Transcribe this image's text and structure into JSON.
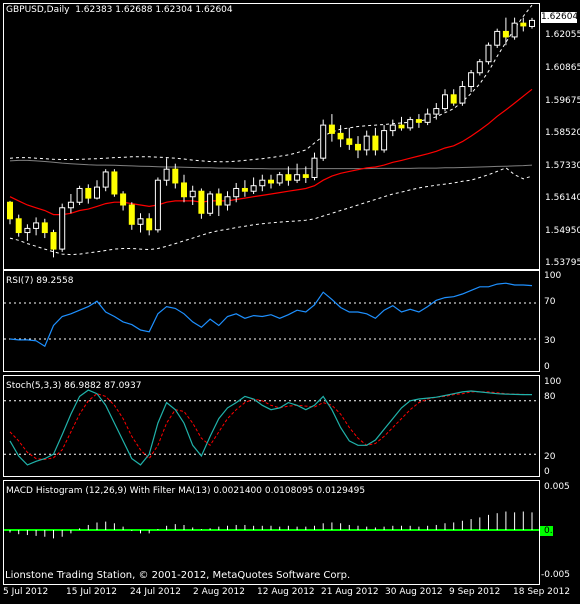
{
  "window": {
    "title": "GBPUSD,Daily",
    "ohlc": "1.62383 1.62688 1.62304 1.62604",
    "last_price": "1.62604",
    "credit": "Lionstone Trading Station, © 2001-2012, MetaQuotes Software Corp."
  },
  "colors": {
    "background": "#000000",
    "frame": "#ffffff",
    "candle_bull": "#000000",
    "candle_bear": "#ffff00",
    "ma": "#ff0000",
    "envelope_mid": "#808080",
    "rsi": "#1e90ff",
    "stoch_main": "#20b2aa",
    "stoch_signal": "#ff0000",
    "macd_hist": "#ffffff",
    "macd_zero": "#00ff00"
  },
  "x_labels": [
    "5 Jul 2012",
    "15 Jul 2012",
    "24 Jul 2012",
    "2 Aug 2012",
    "12 Aug 2012",
    "21 Aug 2012",
    "30 Aug 2012",
    "9 Sep 2012",
    "18 Sep 2012"
  ],
  "price_axis": [
    "1.62055",
    "1.60865",
    "1.59675",
    "1.58520",
    "1.57330",
    "1.56140",
    "1.54950",
    "1.53795"
  ],
  "rsi": {
    "title": "RSI(7) 89.2558",
    "levels": [
      "100",
      "70",
      "30",
      "0"
    ]
  },
  "stoch": {
    "title": "Stoch(5,3,3) 86.9882 87.0937",
    "levels": [
      "100",
      "80",
      "20",
      "0"
    ]
  },
  "macd": {
    "title": "MACD Histogram (12,26,9) With Filter MA(13) 0.0021400 0.0108095 0.0129495",
    "levels": [
      "0.005",
      "0.00",
      "-0.005"
    ]
  },
  "chart_data": [
    {
      "type": "candlestick",
      "title": "GBPUSD,Daily",
      "ylim": [
        1.5365,
        1.6305
      ],
      "candles": [
        [
          1.56,
          1.5605,
          1.552,
          1.554
        ],
        [
          1.554,
          1.5555,
          1.5475,
          1.549
        ],
        [
          1.549,
          1.552,
          1.546,
          1.5505
        ],
        [
          1.5505,
          1.5545,
          1.548,
          1.5525
        ],
        [
          1.5525,
          1.554,
          1.547,
          1.549
        ],
        [
          1.549,
          1.55,
          1.54,
          1.543
        ],
        [
          1.543,
          1.5595,
          1.542,
          1.558
        ],
        [
          1.558,
          1.563,
          1.556,
          1.56
        ],
        [
          1.56,
          1.566,
          1.559,
          1.565
        ],
        [
          1.565,
          1.5665,
          1.5595,
          1.5615
        ],
        [
          1.5615,
          1.568,
          1.561,
          1.5655
        ],
        [
          1.5655,
          1.572,
          1.564,
          1.571
        ],
        [
          1.571,
          1.572,
          1.562,
          1.563
        ],
        [
          1.563,
          1.564,
          1.557,
          1.559
        ],
        [
          1.559,
          1.56,
          1.55,
          1.552
        ],
        [
          1.552,
          1.556,
          1.549,
          1.554
        ],
        [
          1.554,
          1.556,
          1.548,
          1.55
        ],
        [
          1.55,
          1.569,
          1.549,
          1.568
        ],
        [
          1.568,
          1.576,
          1.566,
          1.572
        ],
        [
          1.572,
          1.574,
          1.565,
          1.567
        ],
        [
          1.567,
          1.57,
          1.56,
          1.562
        ],
        [
          1.562,
          1.566,
          1.559,
          1.564
        ],
        [
          1.564,
          1.565,
          1.554,
          1.556
        ],
        [
          1.556,
          1.564,
          1.555,
          1.563
        ],
        [
          1.563,
          1.565,
          1.555,
          1.559
        ],
        [
          1.559,
          1.564,
          1.557,
          1.562
        ],
        [
          1.562,
          1.567,
          1.56,
          1.565
        ],
        [
          1.565,
          1.568,
          1.562,
          1.564
        ],
        [
          1.564,
          1.569,
          1.563,
          1.566
        ],
        [
          1.566,
          1.57,
          1.564,
          1.568
        ],
        [
          1.568,
          1.57,
          1.565,
          1.567
        ],
        [
          1.567,
          1.571,
          1.566,
          1.57
        ],
        [
          1.57,
          1.573,
          1.566,
          1.568
        ],
        [
          1.568,
          1.574,
          1.567,
          1.57
        ],
        [
          1.57,
          1.573,
          1.567,
          1.569
        ],
        [
          1.569,
          1.578,
          1.568,
          1.576
        ],
        [
          1.576,
          1.59,
          1.575,
          1.588
        ],
        [
          1.588,
          1.592,
          1.582,
          1.585
        ],
        [
          1.585,
          1.588,
          1.58,
          1.583
        ],
        [
          1.583,
          1.587,
          1.579,
          1.581
        ],
        [
          1.581,
          1.584,
          1.576,
          1.579
        ],
        [
          1.579,
          1.586,
          1.577,
          1.584
        ],
        [
          1.584,
          1.587,
          1.577,
          1.579
        ],
        [
          1.579,
          1.588,
          1.578,
          1.586
        ],
        [
          1.586,
          1.59,
          1.584,
          1.588
        ],
        [
          1.588,
          1.591,
          1.586,
          1.587
        ],
        [
          1.587,
          1.591,
          1.586,
          1.59
        ],
        [
          1.59,
          1.592,
          1.587,
          1.589
        ],
        [
          1.589,
          1.594,
          1.588,
          1.592
        ],
        [
          1.592,
          1.596,
          1.59,
          1.594
        ],
        [
          1.594,
          1.601,
          1.593,
          1.599
        ],
        [
          1.599,
          1.601,
          1.595,
          1.596
        ],
        [
          1.596,
          1.604,
          1.595,
          1.602
        ],
        [
          1.602,
          1.608,
          1.6,
          1.607
        ],
        [
          1.607,
          1.612,
          1.606,
          1.611
        ],
        [
          1.611,
          1.618,
          1.61,
          1.617
        ],
        [
          1.617,
          1.623,
          1.616,
          1.622
        ],
        [
          1.622,
          1.627,
          1.617,
          1.62
        ],
        [
          1.62,
          1.627,
          1.619,
          1.625
        ],
        [
          1.625,
          1.627,
          1.622,
          1.624
        ],
        [
          1.6238,
          1.6269,
          1.623,
          1.626
        ]
      ],
      "ma": [
        1.562,
        1.5605,
        1.559,
        1.558,
        1.557,
        1.5555,
        1.5555,
        1.556,
        1.557,
        1.5575,
        1.5585,
        1.5595,
        1.56,
        1.56,
        1.5595,
        1.559,
        1.5585,
        1.559,
        1.56,
        1.5605,
        1.5605,
        1.5605,
        1.56,
        1.5605,
        1.5605,
        1.5605,
        1.561,
        1.5615,
        1.562,
        1.5625,
        1.563,
        1.5635,
        1.564,
        1.5645,
        1.565,
        1.566,
        1.568,
        1.5695,
        1.5705,
        1.5712,
        1.5718,
        1.5725,
        1.5728,
        1.5735,
        1.5745,
        1.5752,
        1.576,
        1.5768,
        1.5776,
        1.5785,
        1.5797,
        1.5805,
        1.582,
        1.584,
        1.5862,
        1.5885,
        1.5912,
        1.5935,
        1.596,
        1.5985,
        1.601
      ],
      "mid": [
        1.575,
        1.5752,
        1.5752,
        1.575,
        1.5748,
        1.5745,
        1.5742,
        1.574,
        1.5738,
        1.5736,
        1.5735,
        1.5735,
        1.5734,
        1.5733,
        1.5732,
        1.5731,
        1.573,
        1.5729,
        1.5728,
        1.5728,
        1.5727,
        1.5726,
        1.5725,
        1.5725,
        1.5724,
        1.5724,
        1.5723,
        1.5723,
        1.5722,
        1.5722,
        1.5721,
        1.5721,
        1.5721,
        1.5721,
        1.5722,
        1.5722,
        1.5722,
        1.5722,
        1.5722,
        1.5722,
        1.5722,
        1.5722,
        1.5723,
        1.5723,
        1.5723,
        1.5723,
        1.5723,
        1.5724,
        1.5724,
        1.5724,
        1.5725,
        1.5725,
        1.5726,
        1.5727,
        1.5728,
        1.5729,
        1.573,
        1.5731,
        1.5732,
        1.5733,
        1.5735
      ],
      "upper": [
        1.576,
        1.5762,
        1.5762,
        1.576,
        1.5758,
        1.5756,
        1.5755,
        1.5755,
        1.5756,
        1.5757,
        1.5758,
        1.576,
        1.5762,
        1.5763,
        1.5765,
        1.5765,
        1.5765,
        1.5764,
        1.5762,
        1.576,
        1.5757,
        1.5753,
        1.575,
        1.5748,
        1.5747,
        1.5747,
        1.5749,
        1.5752,
        1.5755,
        1.5758,
        1.5762,
        1.5767,
        1.5772,
        1.578,
        1.579,
        1.5815,
        1.584,
        1.5855,
        1.5865,
        1.587,
        1.5875,
        1.5878,
        1.588,
        1.5882,
        1.5885,
        1.5888,
        1.589,
        1.5895,
        1.59,
        1.591,
        1.5925,
        1.594,
        1.5965,
        1.5995,
        1.603,
        1.6075,
        1.613,
        1.618,
        1.623,
        1.6275,
        1.6315
      ],
      "lower": [
        1.547,
        1.5462,
        1.545,
        1.544,
        1.543,
        1.542,
        1.5412,
        1.541,
        1.5412,
        1.5416,
        1.542,
        1.5425,
        1.543,
        1.5432,
        1.5432,
        1.543,
        1.5428,
        1.5432,
        1.544,
        1.545,
        1.546,
        1.547,
        1.548,
        1.549,
        1.5497,
        1.5502,
        1.5508,
        1.5513,
        1.5518,
        1.5522,
        1.5525,
        1.5528,
        1.553,
        1.5532,
        1.5535,
        1.554,
        1.555,
        1.556,
        1.557,
        1.558,
        1.559,
        1.56,
        1.561,
        1.562,
        1.563,
        1.5637,
        1.5645,
        1.5652,
        1.5657,
        1.5662,
        1.5666,
        1.567,
        1.5676,
        1.568,
        1.569,
        1.57,
        1.5712,
        1.5725,
        1.57,
        1.5685,
        1.5695
      ]
    },
    {
      "type": "line",
      "title": "RSI(7) 89.2558",
      "ylim": [
        0,
        100
      ],
      "series": [
        {
          "name": "RSI(7)",
          "values": [
            30,
            29,
            29,
            28,
            22,
            45,
            55,
            58,
            62,
            66,
            72,
            60,
            55,
            49,
            46,
            40,
            38,
            58,
            66,
            64,
            58,
            49,
            43,
            52,
            45,
            55,
            58,
            53,
            56,
            55,
            57,
            53,
            57,
            62,
            60,
            68,
            82,
            74,
            65,
            60,
            60,
            58,
            53,
            62,
            67,
            60,
            63,
            60,
            66,
            73,
            76,
            77,
            80,
            84,
            88,
            88,
            91,
            92,
            90,
            90,
            89.3
          ]
        }
      ]
    },
    {
      "type": "line",
      "title": "Stoch(5,3,3) 86.9882 87.0937",
      "ylim": [
        0,
        100
      ],
      "series": [
        {
          "name": "Stoch main",
          "values": [
            35,
            18,
            8,
            12,
            15,
            20,
            42,
            65,
            85,
            92,
            88,
            75,
            55,
            35,
            15,
            8,
            20,
            55,
            78,
            70,
            55,
            30,
            18,
            40,
            60,
            72,
            78,
            85,
            82,
            75,
            70,
            72,
            78,
            75,
            70,
            75,
            85,
            70,
            50,
            35,
            30,
            30,
            36,
            48,
            60,
            72,
            80,
            82,
            83,
            84,
            86,
            88,
            90,
            91,
            90,
            89,
            88,
            87.5,
            87.2,
            86.9882,
            86.99
          ]
        },
        {
          "name": "Stoch signal",
          "values": [
            45,
            35,
            22,
            15,
            14,
            16,
            25,
            45,
            65,
            80,
            88,
            85,
            75,
            60,
            40,
            25,
            15,
            30,
            55,
            70,
            68,
            55,
            38,
            30,
            45,
            60,
            70,
            78,
            82,
            80,
            75,
            72,
            74,
            75,
            74,
            73,
            78,
            75,
            65,
            50,
            38,
            30,
            32,
            40,
            50,
            60,
            70,
            78,
            82,
            84,
            85,
            87,
            88,
            90,
            90,
            90,
            89,
            88,
            87.5,
            87.2,
            87.0937
          ]
        }
      ]
    },
    {
      "type": "bar",
      "title": "MACD Histogram (12,26,9) With Filter MA(13) 0.0021400 0.0108095 0.0129495",
      "ylim": [
        -0.0055,
        0.0055
      ],
      "series": [
        {
          "name": "MACD Histogram",
          "values": [
            -0.0003,
            -0.0005,
            -0.0006,
            -0.0007,
            -0.0008,
            -0.001,
            -0.0008,
            -0.0004,
            0.0002,
            0.0006,
            0.0009,
            0.001,
            0.0008,
            0.0004,
            -0.0001,
            -0.0004,
            -0.0004,
            0.0001,
            0.0005,
            0.0007,
            0.0006,
            0.0003,
            0.0001,
            0.0002,
            0.0004,
            0.0005,
            0.0006,
            0.0006,
            0.0005,
            0.0005,
            0.0005,
            0.0004,
            0.0005,
            0.0004,
            0.0004,
            0.0005,
            0.0008,
            0.0009,
            0.0008,
            0.0006,
            0.0005,
            0.0004,
            0.0003,
            0.0004,
            0.0005,
            0.0005,
            0.0005,
            0.0004,
            0.0005,
            0.0006,
            0.0008,
            0.0009,
            0.0011,
            0.0013,
            0.0015,
            0.0018,
            0.002,
            0.0022,
            0.0021,
            0.0022,
            0.0021
          ]
        }
      ]
    }
  ]
}
